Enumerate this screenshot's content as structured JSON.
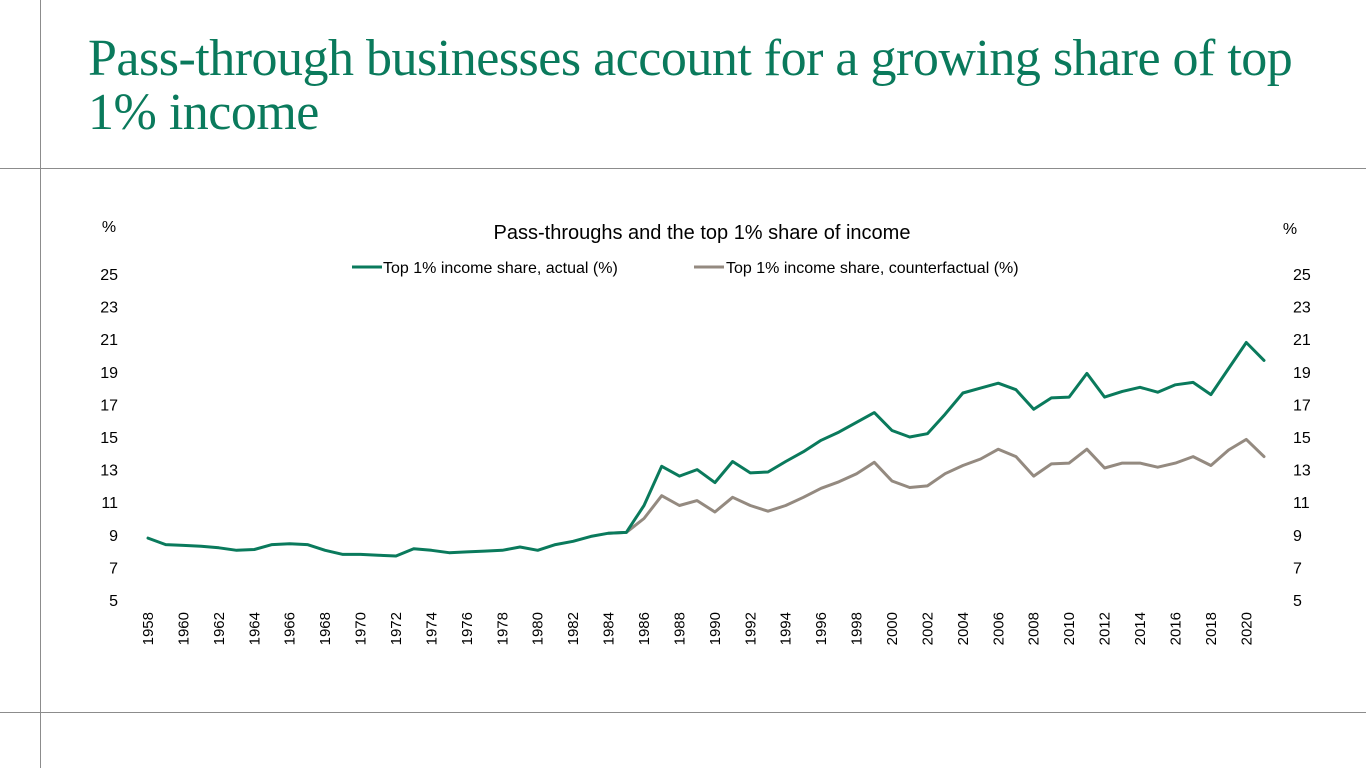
{
  "slide": {
    "title": "Pass-through businesses account for a growing share of top 1% income"
  },
  "chart_data": {
    "type": "line",
    "title": "Pass-throughs and the top 1% share of income",
    "ylabel_left": "%",
    "ylabel_right": "%",
    "ylim": [
      5,
      25
    ],
    "yticks": [
      5,
      7,
      9,
      11,
      13,
      15,
      17,
      19,
      21,
      23,
      25
    ],
    "xlabels": [
      "1958",
      "1960",
      "1962",
      "1964",
      "1966",
      "1968",
      "1970",
      "1972",
      "1974",
      "1976",
      "1978",
      "1980",
      "1982",
      "1984",
      "1986",
      "1988",
      "1990",
      "1992",
      "1994",
      "1996",
      "1998",
      "2000",
      "2002",
      "2004",
      "2006",
      "2008",
      "2010",
      "2012",
      "2014",
      "2016",
      "2018",
      "2020"
    ],
    "grid": false,
    "legend_position": "top-center",
    "series": [
      {
        "name": "Top 1% income share, actual (%)",
        "color": "#0a7a5c",
        "x": [
          1958,
          1959,
          1960,
          1961,
          1962,
          1963,
          1964,
          1965,
          1966,
          1967,
          1968,
          1969,
          1970,
          1971,
          1972,
          1973,
          1974,
          1975,
          1976,
          1977,
          1978,
          1979,
          1980,
          1981,
          1982,
          1983,
          1984,
          1985,
          1986,
          1987,
          1988,
          1989,
          1990,
          1991,
          1992,
          1993,
          1994,
          1995,
          1996,
          1997,
          1998,
          1999,
          2000,
          2001,
          2002,
          2003,
          2004,
          2005,
          2006,
          2007,
          2008,
          2009,
          2010,
          2011,
          2012,
          2013,
          2014,
          2015,
          2016,
          2017,
          2018,
          2019,
          2020,
          2021
        ],
        "values": [
          8.8,
          8.4,
          8.35,
          8.3,
          8.2,
          8.05,
          8.1,
          8.4,
          8.45,
          8.4,
          8.05,
          7.8,
          7.8,
          7.75,
          7.7,
          8.15,
          8.05,
          7.9,
          7.95,
          8.0,
          8.05,
          8.25,
          8.05,
          8.4,
          8.6,
          8.9,
          9.1,
          9.15,
          10.8,
          13.2,
          12.6,
          13.0,
          12.2,
          13.5,
          12.8,
          12.85,
          13.5,
          14.1,
          14.8,
          15.3,
          15.9,
          16.5,
          15.4,
          15.0,
          15.2,
          16.4,
          17.7,
          18.0,
          18.3,
          17.9,
          16.7,
          17.4,
          17.45,
          18.9,
          17.45,
          17.8,
          18.05,
          17.75,
          18.2,
          18.35,
          17.6,
          19.2,
          20.8,
          19.7
        ]
      },
      {
        "name": "Top 1% income share, counterfactual (%)",
        "color": "#948a80",
        "x": [
          1984,
          1985,
          1986,
          1987,
          1988,
          1989,
          1990,
          1991,
          1992,
          1993,
          1994,
          1995,
          1996,
          1997,
          1998,
          1999,
          2000,
          2001,
          2002,
          2003,
          2004,
          2005,
          2006,
          2007,
          2008,
          2009,
          2010,
          2011,
          2012,
          2013,
          2014,
          2015,
          2016,
          2017,
          2018,
          2019,
          2020,
          2021
        ],
        "values": [
          9.1,
          9.15,
          10.0,
          11.4,
          10.8,
          11.1,
          10.4,
          11.3,
          10.8,
          10.45,
          10.8,
          11.3,
          11.85,
          12.25,
          12.75,
          13.45,
          12.3,
          11.9,
          12.0,
          12.75,
          13.25,
          13.65,
          14.25,
          13.8,
          12.6,
          13.35,
          13.4,
          14.25,
          13.1,
          13.4,
          13.4,
          13.15,
          13.4,
          13.8,
          13.25,
          14.2,
          14.85,
          13.8
        ]
      }
    ]
  }
}
